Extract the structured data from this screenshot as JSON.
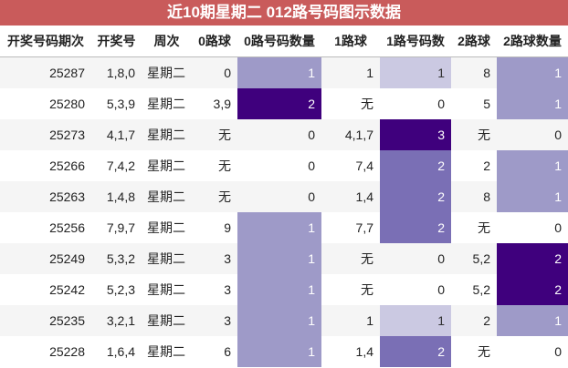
{
  "title": "近10期星期二 012路号码图示数据",
  "table": {
    "header": [
      "开奖号码期次",
      "开奖号",
      "周次",
      "0路球",
      "0路号码数量",
      "1路球",
      "1路号码数",
      "2路球",
      "2路球数量"
    ],
    "count_columns": [
      4,
      6,
      8
    ],
    "rows": [
      [
        25287,
        "1,8,0",
        "星期二",
        "0",
        1,
        "1",
        1,
        "8",
        1
      ],
      [
        25280,
        "5,3,9",
        "星期二",
        "3,9",
        2,
        "无",
        0,
        "5",
        1
      ],
      [
        25273,
        "4,1,7",
        "星期二",
        "无",
        0,
        "4,1,7",
        3,
        "无",
        0
      ],
      [
        25266,
        "7,4,2",
        "星期二",
        "无",
        0,
        "7,4",
        2,
        "2",
        1
      ],
      [
        25263,
        "1,4,8",
        "星期二",
        "无",
        0,
        "1,4",
        2,
        "8",
        1
      ],
      [
        25256,
        "7,9,7",
        "星期二",
        "9",
        1,
        "7,7",
        2,
        "无",
        0
      ],
      [
        25249,
        "5,3,2",
        "星期二",
        "3",
        1,
        "无",
        0,
        "5,2",
        2
      ],
      [
        25242,
        "5,2,3",
        "星期二",
        "3",
        1,
        "无",
        0,
        "5,2",
        2
      ],
      [
        25235,
        "3,2,1",
        "星期二",
        "3",
        1,
        "1",
        1,
        "2",
        1
      ],
      [
        25228,
        "1,6,4",
        "星期二",
        "6",
        1,
        "1,4",
        2,
        "无",
        0
      ]
    ]
  }
}
